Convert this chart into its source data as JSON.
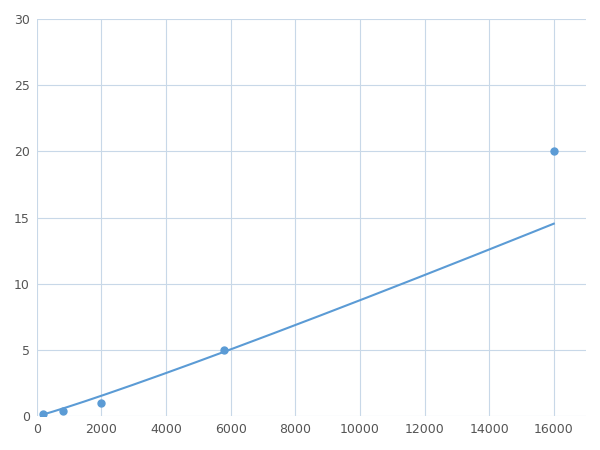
{
  "x": [
    200,
    800,
    2000,
    5800,
    16000
  ],
  "y": [
    0.2,
    0.4,
    1.0,
    5.0,
    20.0
  ],
  "line_color": "#5b9bd5",
  "marker_color": "#5b9bd5",
  "marker_size": 5,
  "line_width": 1.5,
  "xlim": [
    0,
    17000
  ],
  "ylim": [
    0,
    30
  ],
  "xticks": [
    0,
    2000,
    4000,
    6000,
    8000,
    10000,
    12000,
    14000,
    16000
  ],
  "yticks": [
    0,
    5,
    10,
    15,
    20,
    25,
    30
  ],
  "grid_color": "#c8d8e8",
  "background_color": "#ffffff",
  "figsize": [
    6.0,
    4.5
  ],
  "dpi": 100
}
